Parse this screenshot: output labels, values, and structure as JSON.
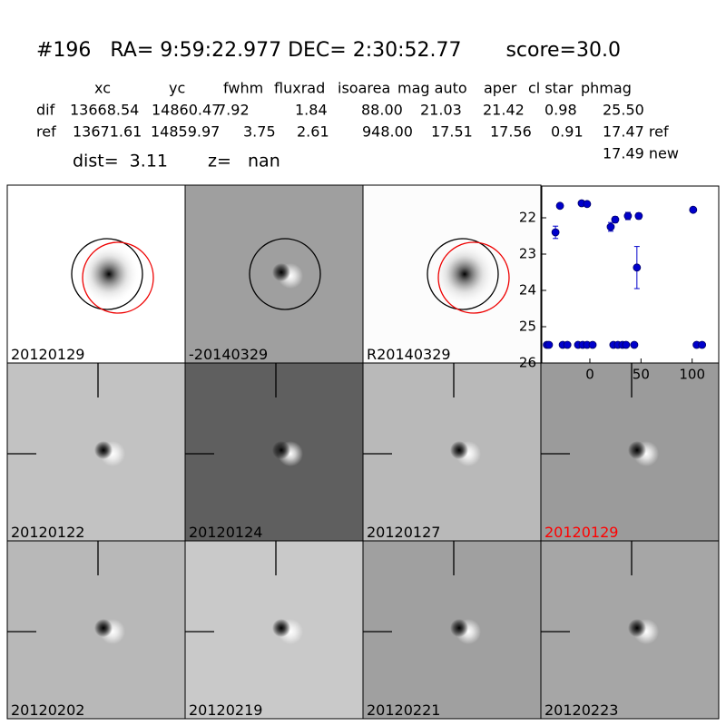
{
  "header": {
    "title": "#196   RA= 9:59:22.977 DEC= 2:30:52.77       score=30.0",
    "columns": [
      "xc",
      "yc",
      "fwhm",
      "fluxrad",
      "isoarea",
      "mag auto",
      "aper",
      "cl star",
      "phmag"
    ],
    "rows": [
      [
        "dif",
        "13668.54",
        "14860.47",
        "7.92",
        "1.84",
        "88.00",
        "21.03",
        "21.42",
        "0.98",
        "25.50"
      ],
      [
        "ref",
        "13671.61",
        "14859.97",
        "3.75",
        "2.61",
        "948.00",
        "17.51",
        "17.56",
        "0.91",
        "17.47 ref"
      ]
    ],
    "extra": "17.49 new",
    "dist": "dist=  3.11",
    "z": "z=   nan"
  },
  "panels": [
    {
      "label": "20120129"
    },
    {
      "label": "-20140329"
    },
    {
      "label": "R20140329"
    },
    {
      "label": "20120122"
    },
    {
      "label": "20120124"
    },
    {
      "label": "20120127"
    },
    {
      "label": "20120129",
      "label_color": "#ff0000"
    },
    {
      "label": "20120202"
    },
    {
      "label": "20120219"
    },
    {
      "label": "20120221"
    },
    {
      "label": "20120223"
    }
  ],
  "chart_data": {
    "type": "scatter",
    "x": [
      -42,
      -40,
      -33.6,
      -29.2,
      -26.5,
      -22,
      -11.5,
      -8,
      -7,
      -2.7,
      -2.7,
      2.7,
      20.4,
      23,
      24.8,
      27.4,
      31.9,
      35.4,
      37.2,
      43.4,
      46,
      47.8,
      101,
      104.4,
      109.7
    ],
    "values": [
      25.5,
      25.5,
      22.4,
      21.67,
      25.5,
      25.5,
      25.5,
      21.6,
      25.5,
      21.62,
      25.5,
      25.5,
      22.25,
      25.5,
      22.05,
      25.5,
      25.5,
      25.5,
      21.95,
      25.5,
      23.37,
      21.95,
      21.78,
      25.5,
      25.5
    ],
    "errors": [
      null,
      null,
      0.17,
      0.03,
      null,
      null,
      null,
      0.03,
      null,
      0.03,
      null,
      null,
      0.12,
      null,
      0.08,
      null,
      null,
      null,
      0.1,
      null,
      0.58,
      0.08,
      0.05,
      null,
      null
    ],
    "color": "#0000cc",
    "edge_color": "#000066",
    "xlim": [
      -47,
      126
    ],
    "ylim": [
      26,
      21.125
    ],
    "xticks": [
      0,
      50,
      100
    ],
    "yticks": [
      22,
      23,
      24,
      25,
      26
    ],
    "grid": false
  }
}
